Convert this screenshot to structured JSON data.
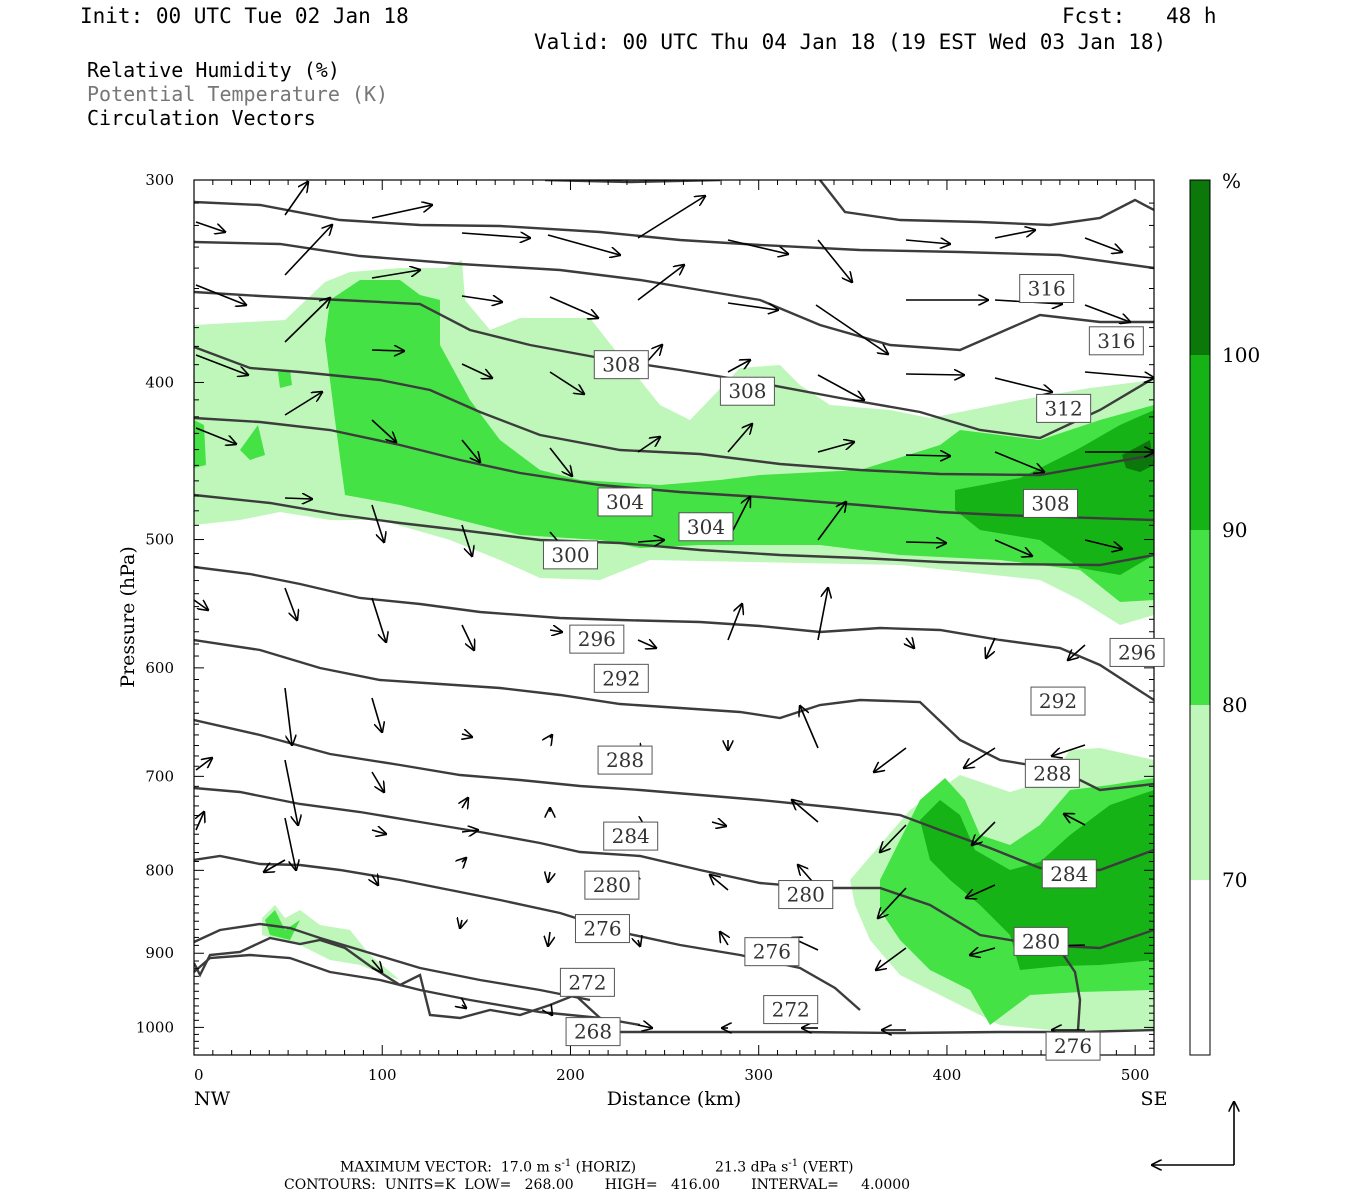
{
  "header": {
    "init": "Init: 00 UTC Tue 02 Jan 18",
    "fcst_label": "Fcst:",
    "fcst_value": "48 h",
    "valid": "Valid: 00 UTC Thu 04 Jan 18 (19 EST Wed 03 Jan 18)"
  },
  "legend": {
    "rh": "Relative Humidity (%)",
    "theta": "Potential Temperature (K)",
    "vectors": "Circulation Vectors"
  },
  "colors": {
    "rh_70_80": "#bff7bb",
    "rh_80_90": "#44e244",
    "rh_90_100": "#16b316",
    "rh_100": "#0c780c",
    "isentrope": "#3c3c3c"
  },
  "chart_data": {
    "type": "cross-section",
    "xlabel": "Distance (km)",
    "ylabel": "Pressure (hPa)",
    "xlim": [
      0,
      510
    ],
    "ylim": [
      1040,
      300
    ],
    "y_log_scale": true,
    "x_ticks": [
      0,
      100,
      200,
      300,
      400,
      500
    ],
    "y_ticks": [
      300,
      400,
      500,
      600,
      700,
      800,
      900,
      1000
    ],
    "x_end_labels": [
      "NW",
      "SE"
    ],
    "colorbar": {
      "unit": "%",
      "levels": [
        70,
        80,
        90,
        100
      ]
    },
    "isentrope_labels": [
      {
        "value": "316",
        "x": 453,
        "p": 350
      },
      {
        "value": "316",
        "x": 490,
        "p": 377
      },
      {
        "value": "312",
        "x": 462,
        "p": 415
      },
      {
        "value": "308",
        "x": 227,
        "p": 390
      },
      {
        "value": "308",
        "x": 294,
        "p": 405
      },
      {
        "value": "308",
        "x": 455,
        "p": 475
      },
      {
        "value": "304",
        "x": 229,
        "p": 474
      },
      {
        "value": "304",
        "x": 272,
        "p": 491
      },
      {
        "value": "300",
        "x": 200,
        "p": 511
      },
      {
        "value": "296",
        "x": 214,
        "p": 576
      },
      {
        "value": "296",
        "x": 501,
        "p": 587
      },
      {
        "value": "292",
        "x": 227,
        "p": 609
      },
      {
        "value": "292",
        "x": 459,
        "p": 629
      },
      {
        "value": "288",
        "x": 229,
        "p": 684
      },
      {
        "value": "288",
        "x": 456,
        "p": 697
      },
      {
        "value": "284",
        "x": 232,
        "p": 762
      },
      {
        "value": "284",
        "x": 465,
        "p": 804
      },
      {
        "value": "280",
        "x": 222,
        "p": 817
      },
      {
        "value": "280",
        "x": 325,
        "p": 828
      },
      {
        "value": "280",
        "x": 450,
        "p": 885
      },
      {
        "value": "276",
        "x": 217,
        "p": 869
      },
      {
        "value": "276",
        "x": 307,
        "p": 898
      },
      {
        "value": "272",
        "x": 209,
        "p": 938
      },
      {
        "value": "272",
        "x": 317,
        "p": 975
      },
      {
        "value": "268",
        "x": 212,
        "p": 1006
      },
      {
        "value": "276",
        "x": 467,
        "p": 1027
      }
    ],
    "max_vector_horiz": "17.0",
    "max_vector_vert": "21.3",
    "contours": {
      "units": "K",
      "low": "268.00",
      "high": "416.00",
      "interval": "4.0000"
    }
  },
  "footer": {
    "max_vector_prefix": "MAXIMUM VECTOR:",
    "horiz_unit_a": "m s",
    "sup": "-1",
    "horiz_tag": "(HORIZ)",
    "vert_unit_a": "dPa s",
    "vert_tag": "(VERT)",
    "contours_line": "CONTOURS:  UNITS=K  LOW=   268.00       HIGH=   416.00       INTERVAL=     4.0000"
  }
}
